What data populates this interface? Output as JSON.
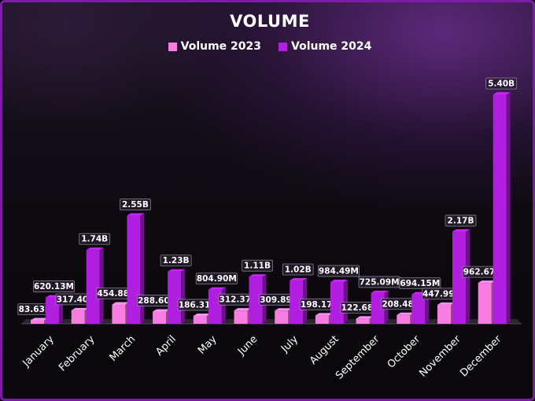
{
  "chart_data": {
    "type": "bar",
    "title": "VOLUME",
    "categories": [
      "January",
      "February",
      "March",
      "April",
      "May",
      "June",
      "July",
      "August",
      "September",
      "October",
      "November",
      "December"
    ],
    "series": [
      {
        "name": "Volume 2023",
        "color": "#f77ee0",
        "values": [
          83630000,
          317400000,
          454880000,
          288600000,
          186310000,
          312370000,
          309890000,
          198170000,
          122680000,
          208480000,
          447990000,
          962670000
        ],
        "labels": [
          "83.63M",
          "317.40M",
          "454.88M",
          "288.60M",
          "186.31M",
          "312.37M",
          "309.89M",
          "198.17M",
          "122.68M",
          "208.48M",
          "447.99M",
          "962.67M"
        ]
      },
      {
        "name": "Volume 2024",
        "color": "#b01ee0",
        "values": [
          620130000,
          1740000000,
          2550000000,
          1230000000,
          804900000,
          1110000000,
          1020000000,
          984490000,
          725090000,
          694150000,
          2170000000,
          5400000000
        ],
        "labels": [
          "620.13M",
          "1.74B",
          "2.55B",
          "1.23B",
          "804.90M",
          "1.11B",
          "1.02B",
          "984.49M",
          "725.09M",
          "694.15M",
          "2.17B",
          "5.40B"
        ]
      }
    ],
    "ylim": [
      0,
      5400000000
    ],
    "grid": false,
    "legend_position": "top"
  }
}
